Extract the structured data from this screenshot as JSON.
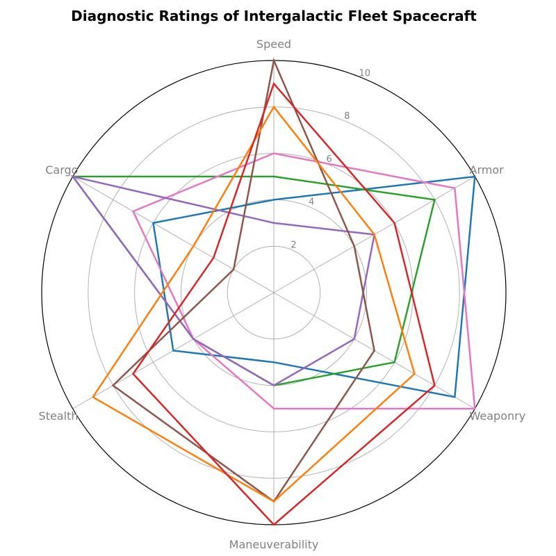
{
  "chart_data": {
    "type": "radar",
    "title": "Diagnostic Ratings of Intergalactic Fleet Spacecraft",
    "axes": [
      "Speed",
      "Armor",
      "Weaponry",
      "Maneuverability",
      "Stealth",
      "Cargo"
    ],
    "rmax": 10,
    "ticks": [
      "2",
      "4",
      "6",
      "8",
      "10"
    ],
    "tick_values": [
      2,
      4,
      6,
      8,
      10
    ],
    "grid": true,
    "series": [
      {
        "color": "#1f77b4",
        "values": [
          4,
          10,
          9,
          3,
          5,
          6
        ]
      },
      {
        "color": "#2ca02c",
        "values": [
          5,
          8,
          6,
          4,
          4,
          10
        ]
      },
      {
        "color": "#e377c2",
        "values": [
          6,
          9,
          10,
          5,
          4,
          7
        ]
      },
      {
        "color": "#9467bd",
        "values": [
          3,
          5,
          4,
          4,
          4,
          10
        ]
      },
      {
        "color": "#8c564b",
        "values": [
          10,
          4,
          5,
          9,
          8,
          2
        ]
      },
      {
        "color": "#ff7f0e",
        "values": [
          8,
          5,
          7,
          9,
          9,
          4
        ]
      },
      {
        "color": "#d62728",
        "values": [
          9,
          6,
          8,
          10,
          7,
          3
        ]
      }
    ]
  }
}
